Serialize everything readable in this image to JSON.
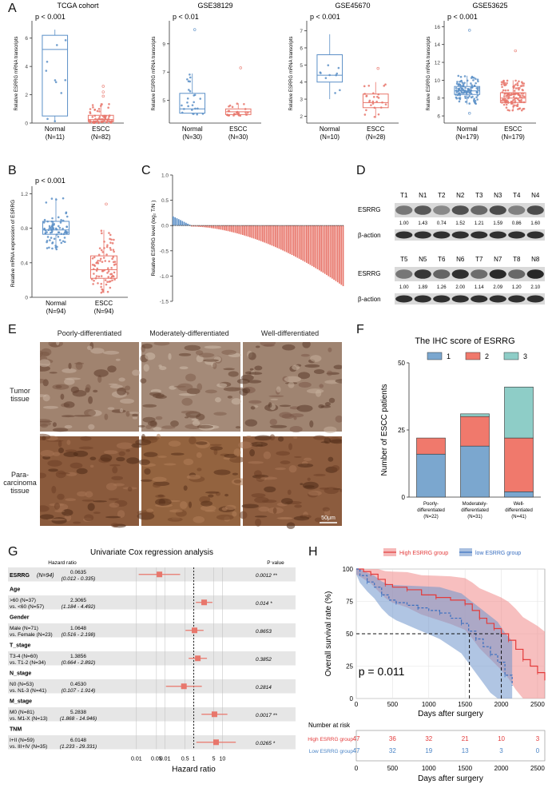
{
  "panel_labels": [
    "A",
    "B",
    "C",
    "D",
    "E",
    "F",
    "G",
    "H"
  ],
  "chart_data": [
    {
      "id": "A1",
      "type": "box",
      "title": "TCGA cohort",
      "pvalue": "p < 0.001",
      "ylabel": "Relative ESRRG mRNA transcripts",
      "ylim": [
        0,
        7
      ],
      "yticks": [
        0,
        2,
        4,
        6
      ],
      "groups": [
        {
          "name": "Normal",
          "n": "(N=11)",
          "min": 0.1,
          "q1": 0.5,
          "median": 5.2,
          "q3": 6.2,
          "max": 6.6,
          "outliers": [],
          "color": "#5b8fc7"
        },
        {
          "name": "ESCC",
          "n": "(N=82)",
          "min": 0,
          "q1": 0.1,
          "median": 0.25,
          "q3": 0.55,
          "max": 1.4,
          "outliers": [
            1.9,
            2.2,
            2.6
          ],
          "color": "#e8766b"
        }
      ]
    },
    {
      "id": "A2",
      "type": "box",
      "title": "GSE38129",
      "pvalue": "p < 0.01",
      "ylabel": "Relative ESRRG mRNA transcripts",
      "ylim": [
        3.4,
        10.4
      ],
      "yticks": [
        5,
        7,
        9
      ],
      "groups": [
        {
          "name": "Normal",
          "n": "(N=30)",
          "min": 4.0,
          "q1": 4.1,
          "median": 4.4,
          "q3": 5.5,
          "max": 6.9,
          "outliers": [
            10.0
          ],
          "color": "#5b8fc7"
        },
        {
          "name": "ESCC",
          "n": "(N=30)",
          "min": 3.9,
          "q1": 4.0,
          "median": 4.2,
          "q3": 4.4,
          "max": 4.8,
          "outliers": [
            7.3
          ],
          "color": "#e8766b"
        }
      ]
    },
    {
      "id": "A3",
      "type": "box",
      "title": "GSE45670",
      "pvalue": "p < 0.001",
      "ylabel": "Relative ESRRG mRNA transcripts",
      "ylim": [
        1.6,
        7.4
      ],
      "yticks": [
        2,
        3,
        4,
        5,
        6,
        7
      ],
      "groups": [
        {
          "name": "Normal",
          "n": "(N=10)",
          "min": 3.0,
          "q1": 4.0,
          "median": 4.4,
          "q3": 5.6,
          "max": 6.8,
          "outliers": [],
          "color": "#5b8fc7"
        },
        {
          "name": "ESCC",
          "n": "(N=28)",
          "min": 1.9,
          "q1": 2.5,
          "median": 2.8,
          "q3": 3.3,
          "max": 4.0,
          "outliers": [
            4.8
          ],
          "color": "#e8766b"
        }
      ]
    },
    {
      "id": "A4",
      "type": "box",
      "title": "GSE53625",
      "pvalue": "p < 0.001",
      "ylabel": "Relative ESRRG mRNA transcripts",
      "ylim": [
        5.2,
        16.3
      ],
      "yticks": [
        6,
        8,
        10,
        12,
        14,
        16
      ],
      "groups": [
        {
          "name": "Normal",
          "n": "(N=179)",
          "min": 7.3,
          "q1": 8.4,
          "median": 8.8,
          "q3": 9.3,
          "max": 10.5,
          "outliers": [
            15.6,
            6.3
          ],
          "color": "#5b8fc7"
        },
        {
          "name": "ESCC",
          "n": "(N=179)",
          "min": 6.6,
          "q1": 7.5,
          "median": 8.0,
          "q3": 8.6,
          "max": 10.0,
          "outliers": [
            13.3
          ],
          "color": "#e8766b"
        }
      ]
    },
    {
      "id": "B",
      "type": "box",
      "title": "",
      "pvalue": "p < 0.001",
      "ylabel": "Relative mRNA expression of ESRRG",
      "ylim": [
        0,
        1.25
      ],
      "yticks": [
        0,
        0.4,
        0.8,
        1.2
      ],
      "ytick_labels": [
        "0",
        "0.4",
        "0.8",
        "1.2"
      ],
      "groups": [
        {
          "name": "Normal",
          "n": "(N=94)",
          "min": 0.55,
          "q1": 0.73,
          "median": 0.78,
          "q3": 0.88,
          "max": 1.15,
          "outliers": [],
          "color": "#5b8fc7"
        },
        {
          "name": "ESCC",
          "n": "(N=94)",
          "min": 0.05,
          "q1": 0.22,
          "median": 0.32,
          "q3": 0.48,
          "max": 0.78,
          "outliers": [
            1.08
          ],
          "color": "#e8766b"
        }
      ]
    },
    {
      "id": "C",
      "type": "bar",
      "title": "",
      "ylabel": "Relative ESRRG level (log₂ T/N )",
      "ylim": [
        -1.5,
        1.0
      ],
      "yticks": [
        1.0,
        0.5,
        0.0,
        -0.5,
        -1.0,
        -1.5
      ],
      "ytick_labels": [
        "1.0",
        "0.5",
        "0.0",
        "-0.5",
        "-1.0",
        "-1.5"
      ],
      "n_bars": 94,
      "n_positive": 10,
      "max_value": 0.18,
      "min_value": -1.2,
      "positive_color": "#5b8fc7",
      "negative_color": "#e8766b"
    },
    {
      "id": "F",
      "type": "bar",
      "stacked": true,
      "title": "The IHC score of ESRRG",
      "ylabel": "Number of ESCC patients",
      "ylim": [
        0,
        50
      ],
      "yticks": [
        0,
        25,
        50
      ],
      "categories": [
        "Poorly-\ndifferentiated\n(N=22)",
        "Moderately-\ndifferentiated\n(N=31)",
        "Well-\ndifferentiated\n(N=41)"
      ],
      "series": [
        {
          "name": "1",
          "values": [
            16,
            19,
            2
          ],
          "color": "#7ba7cf"
        },
        {
          "name": "2",
          "values": [
            6,
            11,
            20
          ],
          "color": "#f0796c"
        },
        {
          "name": "3",
          "values": [
            0,
            1,
            19
          ],
          "color": "#8ecdc7"
        }
      ],
      "legend": "top"
    },
    {
      "id": "G",
      "type": "forest",
      "title": "Univariate Cox regression analysis",
      "col_hr": "Hazard ratio",
      "col_p": "P value",
      "xlabel": "Hazard ratio",
      "xticks": [
        "0.01",
        "0.05",
        "0.01",
        "0.5",
        "1",
        "5",
        "10"
      ],
      "rows": [
        {
          "label": "ESRRG",
          "label_suffix": "(N=94)",
          "bold": true,
          "hr": "0.0635",
          "ci": "(0.012 - 0.335)",
          "p": "0.0012 **",
          "hr_val": 0.0635,
          "lo": 0.012,
          "hi": 0.335,
          "shade": true
        },
        {
          "label": "Age",
          "bold": true,
          "shade": false
        },
        {
          "label": ">60 (N=37)",
          "label2": "vs. <60 (N=57)",
          "hr": "2.3065",
          "ci": "(1.184 - 4.492)",
          "p": "0.014 *",
          "hr_val": 2.3065,
          "lo": 1.184,
          "hi": 4.492,
          "shade": true
        },
        {
          "label": "Gender",
          "bold": true,
          "shade": false
        },
        {
          "label": "Male (N=71)",
          "label2": "vs. Female (N=23)",
          "hr": "1.0648",
          "ci": "(0.516 - 2.198)",
          "p": "0.8653",
          "hr_val": 1.0648,
          "lo": 0.516,
          "hi": 2.198,
          "shade": true
        },
        {
          "label": "T_stage",
          "bold": true,
          "shade": false
        },
        {
          "label": "T3-4 (N=60)",
          "label2": "vs. T1-2 (N=34)",
          "hr": "1.3856",
          "ci": "(0.664 - 2.892)",
          "p": "0.3852",
          "hr_val": 1.3856,
          "lo": 0.664,
          "hi": 2.892,
          "shade": true
        },
        {
          "label": "N_stage",
          "bold": true,
          "shade": false
        },
        {
          "label": "N0 (N=53)",
          "label2": "vs. N1-3 (N=41)",
          "hr": "0.4530",
          "ci": "(0.107 - 1.914)",
          "p": "0.2814",
          "hr_val": 0.453,
          "lo": 0.107,
          "hi": 1.914,
          "shade": true
        },
        {
          "label": "M_stage",
          "bold": true,
          "shade": false
        },
        {
          "label": "M0 (N=81)",
          "label2": "vs. M1-X (N=13)",
          "hr": "5.2838",
          "ci": "(1.868 - 14.946)",
          "p": "0.0017 **",
          "hr_val": 5.2838,
          "lo": 1.868,
          "hi": 14.946,
          "shade": true
        },
        {
          "label": "TNM",
          "bold": true,
          "shade": false
        },
        {
          "label": "I+II (N=59)",
          "label2": "vs. III+IV (N=35)",
          "hr": "6.0148",
          "ci": "(1.233 - 29.331)",
          "p": "0.0265 *",
          "hr_val": 6.0148,
          "lo": 1.233,
          "hi": 29.331,
          "shade": true
        }
      ]
    },
    {
      "id": "H",
      "type": "line",
      "title": "",
      "ylabel": "Overall survival rate (%)",
      "xlabel": "Days after surgery",
      "xlim": [
        0,
        2600
      ],
      "ylim": [
        0,
        100
      ],
      "xticks": [
        0,
        500,
        1000,
        1500,
        2000,
        2500
      ],
      "yticks": [
        0,
        25,
        50,
        75,
        100
      ],
      "pvalue": "p = 0.011",
      "series": [
        {
          "name": "High ESRRG group",
          "color": "#e33b3b",
          "band": "#f08a8a",
          "x": [
            0,
            100,
            200,
            300,
            400,
            500,
            700,
            900,
            1100,
            1300,
            1500,
            1600,
            1700,
            1800,
            1900,
            2000,
            2100,
            2200,
            2300,
            2400,
            2500,
            2600
          ],
          "y": [
            100,
            98,
            96,
            92,
            88,
            86,
            84,
            80,
            78,
            76,
            73,
            68,
            62,
            58,
            54,
            50,
            45,
            38,
            30,
            25,
            20,
            14
          ]
        },
        {
          "name": "low ESRRG group",
          "color": "#3a6fc0",
          "band": "#7096cc",
          "x": [
            0,
            50,
            150,
            250,
            350,
            450,
            550,
            700,
            850,
            1000,
            1150,
            1300,
            1450,
            1550,
            1650,
            1750,
            1850,
            1950,
            2050,
            2150
          ],
          "y": [
            100,
            95,
            90,
            86,
            80,
            76,
            74,
            72,
            70,
            68,
            66,
            62,
            58,
            52,
            46,
            40,
            34,
            28,
            18,
            10
          ]
        }
      ],
      "median_lines": [
        1560,
        2000
      ],
      "risk_table": {
        "title": "Number at risk",
        "rows": [
          {
            "name": "High ESRRG group",
            "color": "#e33b3b",
            "values": [
              "47",
              "36",
              "32",
              "21",
              "10",
              "3"
            ]
          },
          {
            "name": "Low ESRRG group",
            "color": "#4a84c6",
            "values": [
              "47",
              "32",
              "19",
              "13",
              "3",
              "0"
            ]
          }
        ],
        "xticks": [
          "0",
          "500",
          "1000",
          "1500",
          "2000",
          "2500"
        ],
        "xlabel": "Days after surgery"
      }
    }
  ],
  "blot": {
    "row1_lanes": [
      "T1",
      "N1",
      "T2",
      "N2",
      "T3",
      "N3",
      "T4",
      "N4"
    ],
    "row1_values": [
      "1.00",
      "1.43",
      "0.74",
      "1.52",
      "1.21",
      "1.59",
      "0.86",
      "1.60"
    ],
    "row2_lanes": [
      "T5",
      "N5",
      "T6",
      "N6",
      "T7",
      "N7",
      "T8",
      "N8"
    ],
    "row2_values": [
      "1.00",
      "1.89",
      "1.26",
      "2.00",
      "1.14",
      "2.09",
      "1.20",
      "2.10"
    ],
    "band_label_1": "ESRRG",
    "band_label_2": "β-action"
  },
  "ihc": {
    "columns": [
      "Poorly-differentiated",
      "Moderately-differentiated",
      "Well-differentiated"
    ],
    "row1": "Tumor\ntissue",
    "row2": "Para-carcinoma\ntissue",
    "scale": "50μm"
  }
}
